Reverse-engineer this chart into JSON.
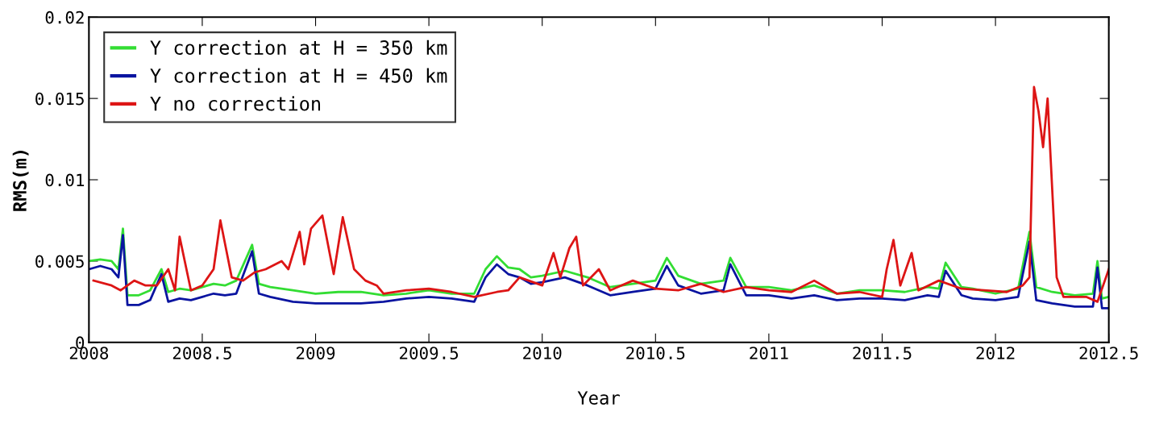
{
  "chart_data": {
    "type": "line",
    "xlabel": "Year",
    "ylabel": "RMS(m)",
    "xlim": [
      2008,
      2012.5
    ],
    "ylim": [
      0,
      0.02
    ],
    "xticks": [
      2008,
      2008.5,
      2009,
      2009.5,
      2010,
      2010.5,
      2011,
      2011.5,
      2012,
      2012.5
    ],
    "yticks": [
      0,
      {
        "value": 0.005,
        "label": "0.005"
      },
      {
        "value": 0.01,
        "label": "0.01"
      },
      {
        "value": 0.015,
        "label": "0.015"
      },
      {
        "value": 0.02,
        "label": "0.02"
      }
    ],
    "grid": false,
    "legend": "top left",
    "line_style": "solid",
    "marker": "none",
    "series": [
      {
        "name": "Y correction at H = 350 km",
        "color": "#33dd33",
        "x": [
          2008,
          2008.05,
          2008.1,
          2008.13,
          2008.15,
          2008.17,
          2008.22,
          2008.27,
          2008.32,
          2008.35,
          2008.4,
          2008.45,
          2008.5,
          2008.55,
          2008.6,
          2008.65,
          2008.72,
          2008.75,
          2008.8,
          2008.9,
          2009,
          2009.1,
          2009.2,
          2009.3,
          2009.4,
          2009.5,
          2009.6,
          2009.7,
          2009.75,
          2009.8,
          2009.85,
          2009.9,
          2009.95,
          2010,
          2010.1,
          2010.2,
          2010.3,
          2010.4,
          2010.5,
          2010.55,
          2010.6,
          2010.7,
          2010.8,
          2010.83,
          2010.9,
          2011,
          2011.1,
          2011.2,
          2011.3,
          2011.4,
          2011.5,
          2011.6,
          2011.7,
          2011.75,
          2011.78,
          2011.85,
          2011.9,
          2012,
          2012.1,
          2012.15,
          2012.18,
          2012.25,
          2012.35,
          2012.43,
          2012.45,
          2012.47,
          2012.5
        ],
        "values": [
          0.005,
          0.0051,
          0.005,
          0.0045,
          0.007,
          0.0029,
          0.0029,
          0.0032,
          0.0045,
          0.0031,
          0.0033,
          0.0032,
          0.0034,
          0.0036,
          0.0035,
          0.0038,
          0.006,
          0.0036,
          0.0034,
          0.0032,
          0.003,
          0.0031,
          0.0031,
          0.0029,
          0.003,
          0.0032,
          0.003,
          0.003,
          0.0045,
          0.0053,
          0.0046,
          0.0045,
          0.004,
          0.0041,
          0.0044,
          0.004,
          0.0034,
          0.0036,
          0.0038,
          0.0052,
          0.0041,
          0.0036,
          0.0038,
          0.0052,
          0.0034,
          0.0034,
          0.0032,
          0.0035,
          0.003,
          0.0032,
          0.0032,
          0.0031,
          0.0034,
          0.0033,
          0.0049,
          0.0034,
          0.0033,
          0.003,
          0.0033,
          0.0068,
          0.0034,
          0.0031,
          0.0029,
          0.003,
          0.005,
          0.0027,
          0.0028
        ]
      },
      {
        "name": "Y correction at H = 450 km",
        "color": "#0a14a0",
        "x": [
          2008,
          2008.05,
          2008.1,
          2008.13,
          2008.15,
          2008.17,
          2008.22,
          2008.27,
          2008.32,
          2008.35,
          2008.4,
          2008.45,
          2008.5,
          2008.55,
          2008.6,
          2008.65,
          2008.72,
          2008.75,
          2008.8,
          2008.9,
          2009,
          2009.1,
          2009.2,
          2009.3,
          2009.4,
          2009.5,
          2009.6,
          2009.7,
          2009.75,
          2009.8,
          2009.85,
          2009.9,
          2009.95,
          2010,
          2010.1,
          2010.2,
          2010.3,
          2010.4,
          2010.5,
          2010.55,
          2010.6,
          2010.7,
          2010.8,
          2010.83,
          2010.9,
          2011,
          2011.1,
          2011.2,
          2011.3,
          2011.4,
          2011.5,
          2011.6,
          2011.7,
          2011.75,
          2011.78,
          2011.85,
          2011.9,
          2012,
          2012.1,
          2012.15,
          2012.18,
          2012.25,
          2012.35,
          2012.43,
          2012.45,
          2012.47,
          2012.5
        ],
        "values": [
          0.0045,
          0.0047,
          0.0045,
          0.004,
          0.0066,
          0.0023,
          0.0023,
          0.0026,
          0.0042,
          0.0025,
          0.0027,
          0.0026,
          0.0028,
          0.003,
          0.0029,
          0.003,
          0.0056,
          0.003,
          0.0028,
          0.0025,
          0.0024,
          0.0024,
          0.0024,
          0.0025,
          0.0027,
          0.0028,
          0.0027,
          0.0025,
          0.004,
          0.0048,
          0.0042,
          0.004,
          0.0036,
          0.0037,
          0.004,
          0.0035,
          0.0029,
          0.0031,
          0.0033,
          0.0047,
          0.0035,
          0.003,
          0.0032,
          0.0048,
          0.0029,
          0.0029,
          0.0027,
          0.0029,
          0.0026,
          0.0027,
          0.0027,
          0.0026,
          0.0029,
          0.0028,
          0.0044,
          0.0029,
          0.0027,
          0.0026,
          0.0028,
          0.0062,
          0.0026,
          0.0024,
          0.0022,
          0.0022,
          0.0046,
          0.0021,
          0.0021
        ]
      },
      {
        "name": "Y no correction",
        "color": "#dd1515",
        "x": [
          2008.02,
          2008.1,
          2008.14,
          2008.2,
          2008.25,
          2008.3,
          2008.35,
          2008.38,
          2008.4,
          2008.45,
          2008.5,
          2008.55,
          2008.58,
          2008.63,
          2008.68,
          2008.73,
          2008.78,
          2008.85,
          2008.88,
          2008.93,
          2008.95,
          2008.98,
          2009.03,
          2009.08,
          2009.12,
          2009.17,
          2009.22,
          2009.27,
          2009.3,
          2009.4,
          2009.5,
          2009.6,
          2009.7,
          2009.8,
          2009.85,
          2009.9,
          2010,
          2010.05,
          2010.08,
          2010.12,
          2010.15,
          2010.18,
          2010.25,
          2010.3,
          2010.4,
          2010.5,
          2010.6,
          2010.7,
          2010.8,
          2010.9,
          2011,
          2011.1,
          2011.2,
          2011.3,
          2011.4,
          2011.5,
          2011.52,
          2011.55,
          2011.58,
          2011.63,
          2011.66,
          2011.75,
          2011.85,
          2011.95,
          2012.05,
          2012.12,
          2012.15,
          2012.17,
          2012.19,
          2012.21,
          2012.23,
          2012.27,
          2012.3,
          2012.4,
          2012.45,
          2012.5
        ],
        "values": [
          0.0038,
          0.0035,
          0.0032,
          0.0038,
          0.0035,
          0.0035,
          0.0045,
          0.0032,
          0.0065,
          0.0032,
          0.0035,
          0.0045,
          0.0075,
          0.004,
          0.0038,
          0.0043,
          0.0045,
          0.005,
          0.0045,
          0.0068,
          0.0048,
          0.007,
          0.0078,
          0.0042,
          0.0077,
          0.0045,
          0.0038,
          0.0035,
          0.003,
          0.0032,
          0.0033,
          0.0031,
          0.0028,
          0.0031,
          0.0032,
          0.004,
          0.0035,
          0.0055,
          0.004,
          0.0058,
          0.0065,
          0.0035,
          0.0045,
          0.0032,
          0.0038,
          0.0033,
          0.0032,
          0.0036,
          0.0031,
          0.0034,
          0.0032,
          0.0031,
          0.0038,
          0.003,
          0.0031,
          0.0028,
          0.0045,
          0.0063,
          0.0035,
          0.0055,
          0.0032,
          0.0038,
          0.0033,
          0.0032,
          0.0031,
          0.0035,
          0.004,
          0.0157,
          0.0142,
          0.012,
          0.015,
          0.004,
          0.0028,
          0.0028,
          0.0025,
          0.0045
        ]
      }
    ]
  }
}
